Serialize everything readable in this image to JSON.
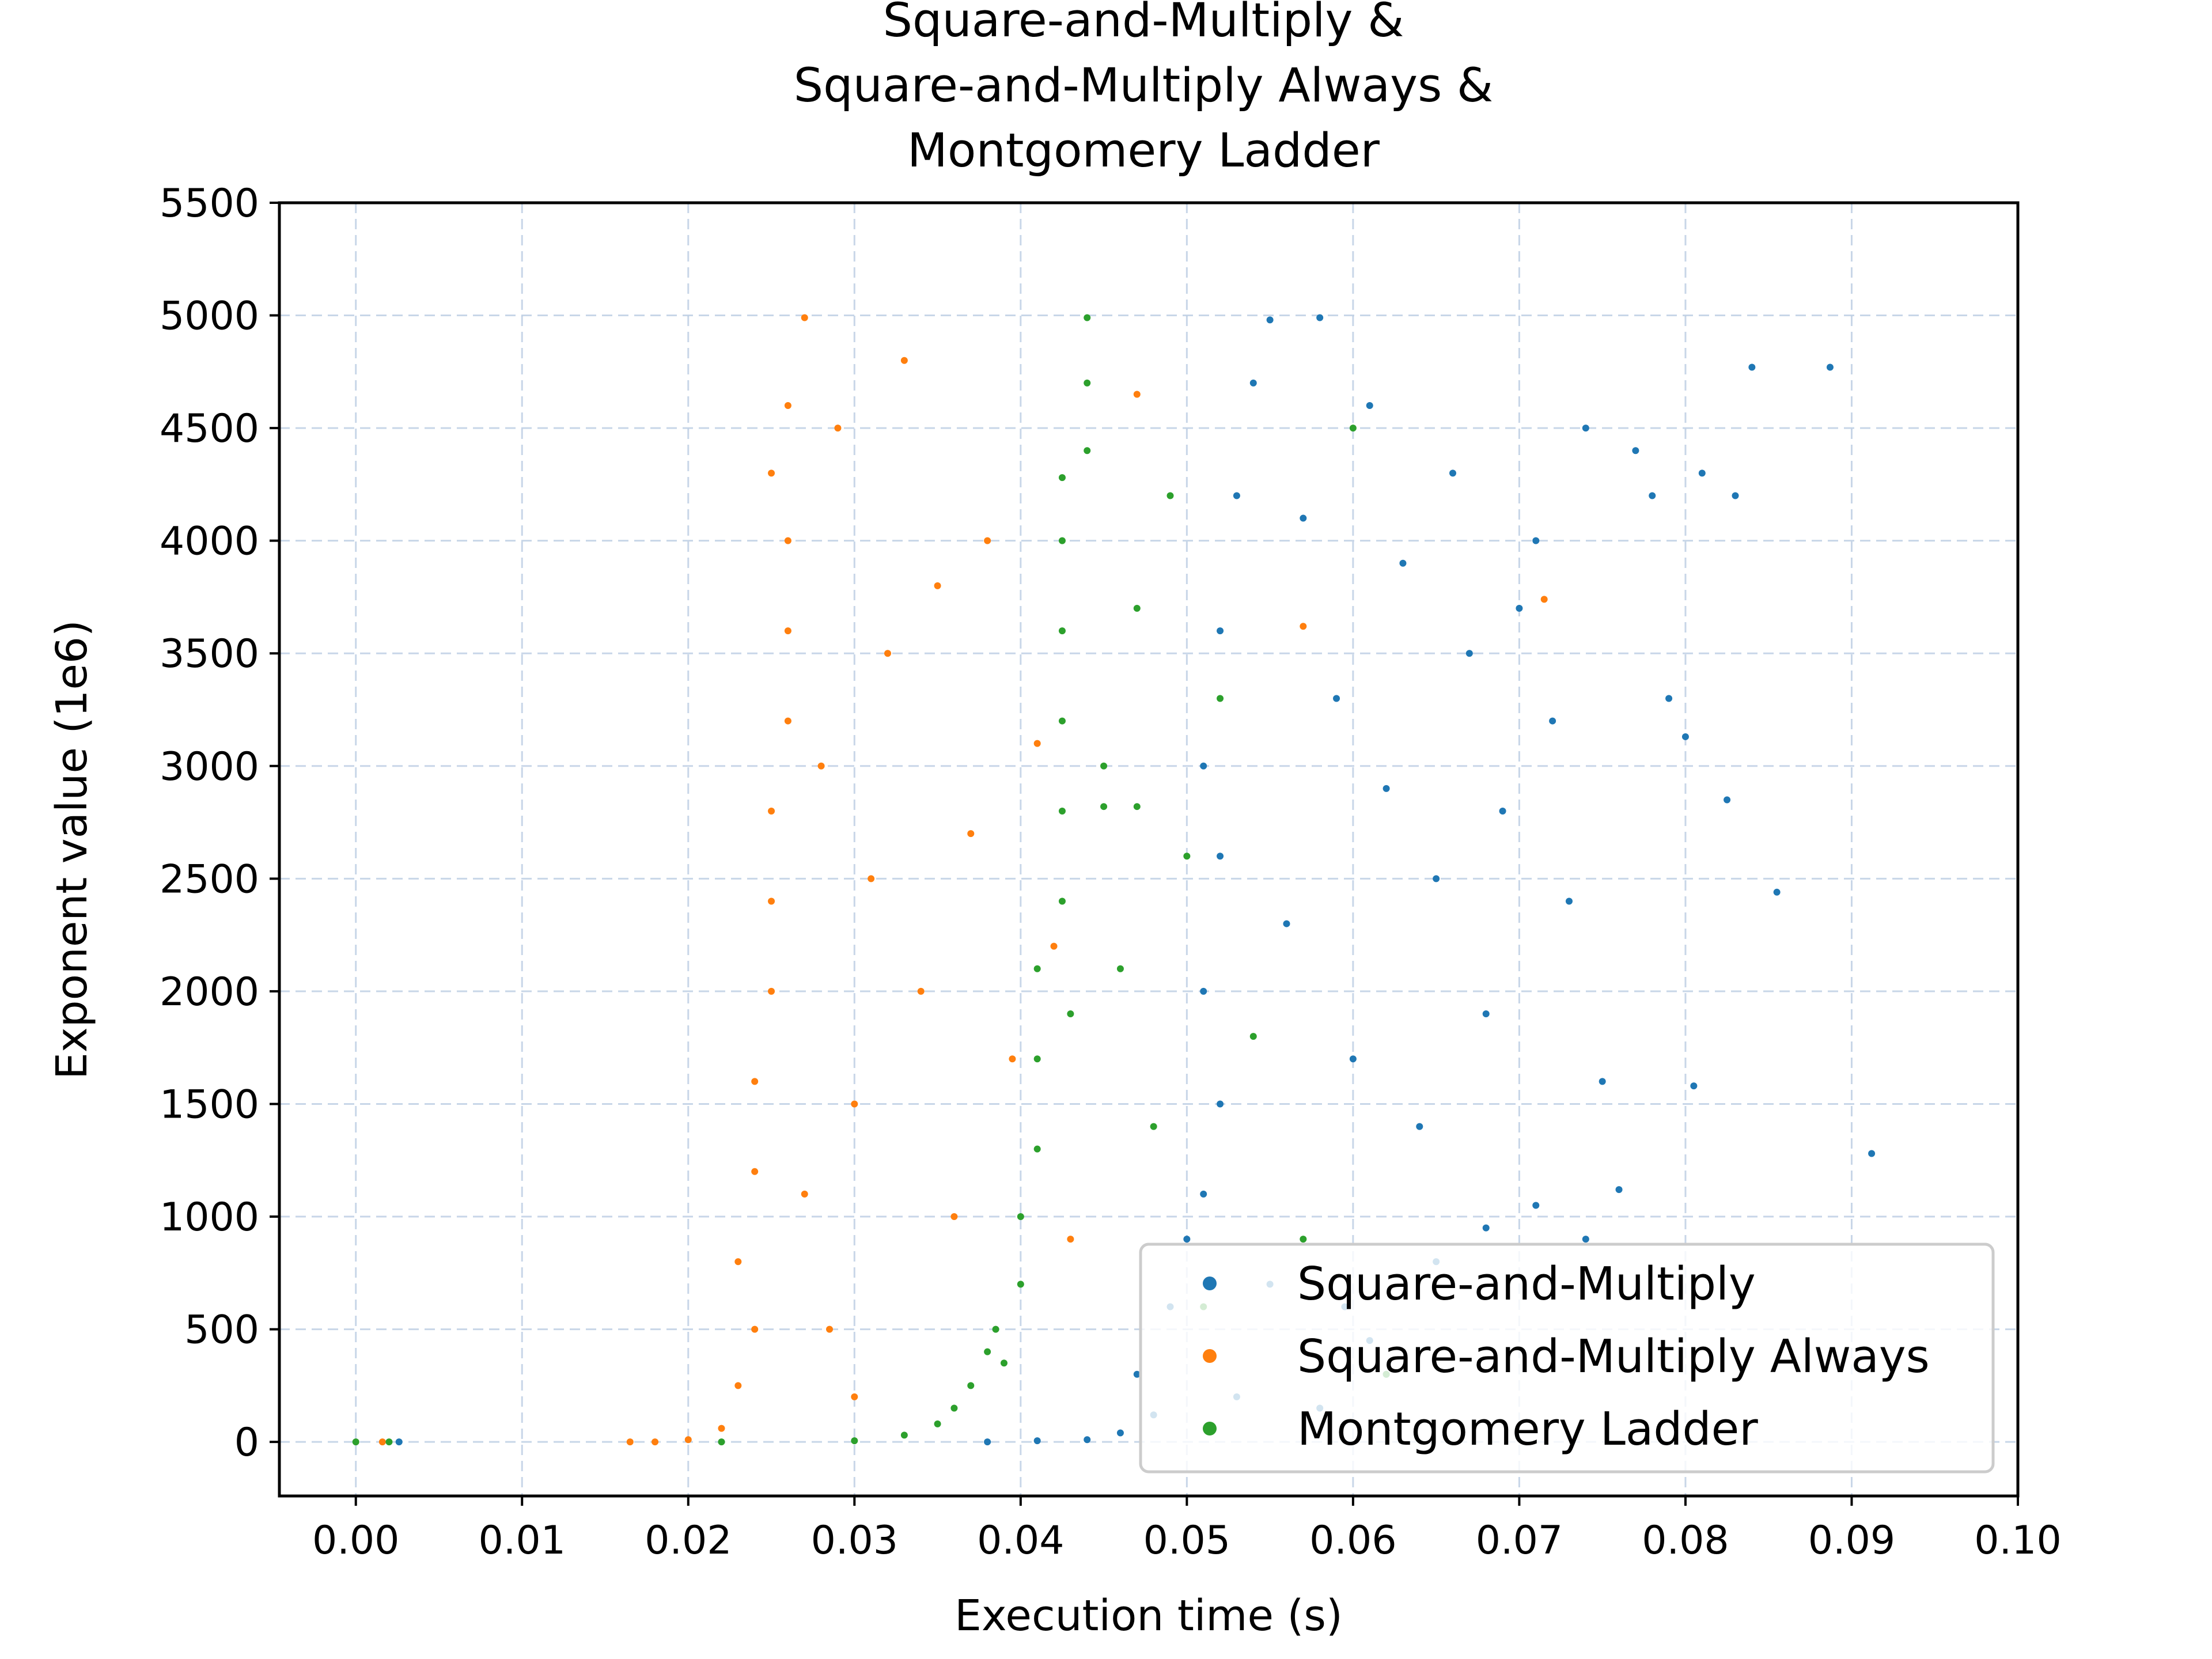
{
  "chart_data": {
    "type": "scatter",
    "title_lines": [
      "Square-and-Multiply &",
      "Square-and-Multiply Always &",
      "Montgomery Ladder"
    ],
    "xlabel": "Execution time (s)",
    "ylabel": "Exponent value (1e6)",
    "xlim": [
      -0.0046,
      0.1
    ],
    "ylim": [
      -240,
      5500
    ],
    "xticks": [
      0.0,
      0.01,
      0.02,
      0.03,
      0.04,
      0.05,
      0.06,
      0.07,
      0.08,
      0.09,
      0.1
    ],
    "xtick_labels": [
      "0.00",
      "0.01",
      "0.02",
      "0.03",
      "0.04",
      "0.05",
      "0.06",
      "0.07",
      "0.08",
      "0.09",
      "0.10"
    ],
    "yticks": [
      0,
      500,
      1000,
      1500,
      2000,
      2500,
      3000,
      3500,
      4000,
      4500,
      5000,
      5500
    ],
    "ytick_labels": [
      "0",
      "500",
      "1000",
      "1500",
      "2000",
      "2500",
      "3000",
      "3500",
      "4000",
      "4500",
      "5000",
      "5500"
    ],
    "grid": true,
    "legend_position": "lower-right",
    "series": [
      {
        "name": "Square-and-Multiply",
        "color": "#1f77b4",
        "points": [
          [
            0.0026,
            0
          ],
          [
            0.038,
            0
          ],
          [
            0.041,
            5
          ],
          [
            0.044,
            10
          ],
          [
            0.046,
            40
          ],
          [
            0.048,
            120
          ],
          [
            0.047,
            300
          ],
          [
            0.049,
            600
          ],
          [
            0.05,
            900
          ],
          [
            0.051,
            1100
          ],
          [
            0.052,
            1500
          ],
          [
            0.051,
            2000
          ],
          [
            0.052,
            2600
          ],
          [
            0.051,
            3000
          ],
          [
            0.052,
            3600
          ],
          [
            0.053,
            4200
          ],
          [
            0.054,
            4700
          ],
          [
            0.055,
            4980
          ],
          [
            0.056,
            2300
          ],
          [
            0.057,
            4100
          ],
          [
            0.058,
            4990
          ],
          [
            0.059,
            3300
          ],
          [
            0.06,
            1700
          ],
          [
            0.061,
            4600
          ],
          [
            0.062,
            2900
          ],
          [
            0.063,
            3900
          ],
          [
            0.064,
            1400
          ],
          [
            0.065,
            2500
          ],
          [
            0.066,
            4300
          ],
          [
            0.067,
            3500
          ],
          [
            0.068,
            1900
          ],
          [
            0.069,
            2800
          ],
          [
            0.07,
            3700
          ],
          [
            0.071,
            4000
          ],
          [
            0.072,
            3200
          ],
          [
            0.073,
            2400
          ],
          [
            0.074,
            4500
          ],
          [
            0.075,
            1600
          ],
          [
            0.076,
            1120
          ],
          [
            0.077,
            4400
          ],
          [
            0.078,
            4200
          ],
          [
            0.079,
            3300
          ],
          [
            0.08,
            3130
          ],
          [
            0.0805,
            1580
          ],
          [
            0.081,
            4300
          ],
          [
            0.0825,
            2850
          ],
          [
            0.083,
            4200
          ],
          [
            0.0855,
            2440
          ],
          [
            0.084,
            4770
          ],
          [
            0.0887,
            4770
          ],
          [
            0.0912,
            1280
          ],
          [
            0.0595,
            600
          ],
          [
            0.062,
            300
          ],
          [
            0.065,
            800
          ],
          [
            0.068,
            950
          ],
          [
            0.071,
            1050
          ],
          [
            0.074,
            900
          ],
          [
            0.058,
            150
          ],
          [
            0.061,
            450
          ],
          [
            0.055,
            700
          ],
          [
            0.053,
            200
          ]
        ]
      },
      {
        "name": "Square-and-Multiply Always",
        "color": "#ff7f0e",
        "points": [
          [
            0.0016,
            0
          ],
          [
            0.0165,
            0
          ],
          [
            0.018,
            0
          ],
          [
            0.02,
            10
          ],
          [
            0.022,
            60
          ],
          [
            0.023,
            250
          ],
          [
            0.024,
            500
          ],
          [
            0.023,
            800
          ],
          [
            0.024,
            1200
          ],
          [
            0.024,
            1600
          ],
          [
            0.025,
            2000
          ],
          [
            0.025,
            2400
          ],
          [
            0.025,
            2800
          ],
          [
            0.026,
            3200
          ],
          [
            0.026,
            3600
          ],
          [
            0.026,
            4000
          ],
          [
            0.025,
            4300
          ],
          [
            0.026,
            4600
          ],
          [
            0.027,
            4990
          ],
          [
            0.028,
            3000
          ],
          [
            0.029,
            4500
          ],
          [
            0.03,
            1500
          ],
          [
            0.031,
            2500
          ],
          [
            0.032,
            3500
          ],
          [
            0.033,
            4800
          ],
          [
            0.034,
            2000
          ],
          [
            0.035,
            3800
          ],
          [
            0.036,
            1000
          ],
          [
            0.037,
            2700
          ],
          [
            0.038,
            4000
          ],
          [
            0.0395,
            1700
          ],
          [
            0.041,
            3100
          ],
          [
            0.042,
            2200
          ],
          [
            0.043,
            900
          ],
          [
            0.047,
            4650
          ],
          [
            0.057,
            3620
          ],
          [
            0.0715,
            3740
          ],
          [
            0.0285,
            500
          ],
          [
            0.03,
            200
          ],
          [
            0.027,
            1100
          ]
        ]
      },
      {
        "name": "Montgomery Ladder",
        "color": "#2ca02c",
        "points": [
          [
            0.0,
            0
          ],
          [
            0.002,
            0
          ],
          [
            0.022,
            0
          ],
          [
            0.03,
            5
          ],
          [
            0.033,
            30
          ],
          [
            0.035,
            80
          ],
          [
            0.036,
            150
          ],
          [
            0.037,
            250
          ],
          [
            0.038,
            400
          ],
          [
            0.0385,
            500
          ],
          [
            0.04,
            700
          ],
          [
            0.04,
            1000
          ],
          [
            0.041,
            1300
          ],
          [
            0.041,
            1700
          ],
          [
            0.041,
            2100
          ],
          [
            0.0425,
            2400
          ],
          [
            0.0425,
            2800
          ],
          [
            0.0425,
            3200
          ],
          [
            0.0425,
            3600
          ],
          [
            0.0425,
            4000
          ],
          [
            0.0425,
            4280
          ],
          [
            0.044,
            4400
          ],
          [
            0.044,
            4700
          ],
          [
            0.044,
            4990
          ],
          [
            0.045,
            3000
          ],
          [
            0.046,
            2100
          ],
          [
            0.047,
            3700
          ],
          [
            0.048,
            1400
          ],
          [
            0.049,
            4200
          ],
          [
            0.05,
            2600
          ],
          [
            0.051,
            600
          ],
          [
            0.052,
            3300
          ],
          [
            0.054,
            1800
          ],
          [
            0.057,
            900
          ],
          [
            0.06,
            4500
          ],
          [
            0.062,
            300
          ],
          [
            0.045,
            2820
          ],
          [
            0.047,
            2820
          ],
          [
            0.043,
            1900
          ],
          [
            0.039,
            350
          ]
        ]
      }
    ]
  }
}
